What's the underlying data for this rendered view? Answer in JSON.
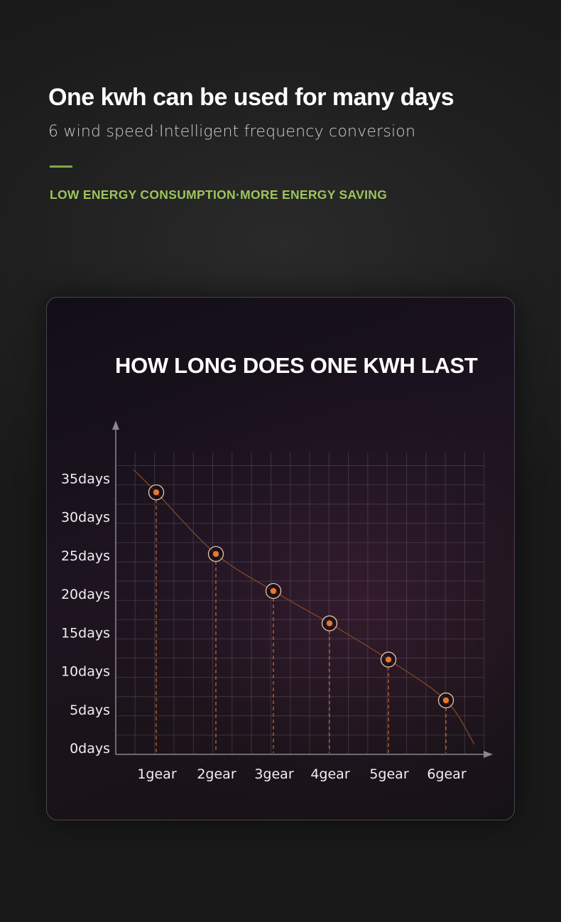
{
  "header": {
    "title": "One kwh can be used for many days",
    "subtitle": "6 wind speed·Intelligent frequency conversion",
    "tagline": "LOW ENERGY CONSUMPTION·MORE ENERGY SAVING"
  },
  "colors": {
    "accent_green": "#9cc45c",
    "accent_bar": "#7fa84a",
    "point_orange": "#e5782e",
    "curve": "#7a4526"
  },
  "chart_data": {
    "type": "line",
    "title": "HOW LONG DOES ONE KWH LAST",
    "categories": [
      "1gear",
      "2gear",
      "3gear",
      "4gear",
      "5gear",
      "6gear"
    ],
    "values": [
      34,
      26,
      21.2,
      17,
      12.3,
      7
    ],
    "y_ticks": [
      0,
      5,
      10,
      15,
      20,
      25,
      30,
      35
    ],
    "y_tick_labels": [
      "0days",
      "5days",
      "10days",
      "15days",
      "20days",
      "25days",
      "30days",
      "35days"
    ],
    "ylim": [
      0,
      38
    ],
    "grid": true,
    "xlabel": "",
    "ylabel": ""
  }
}
